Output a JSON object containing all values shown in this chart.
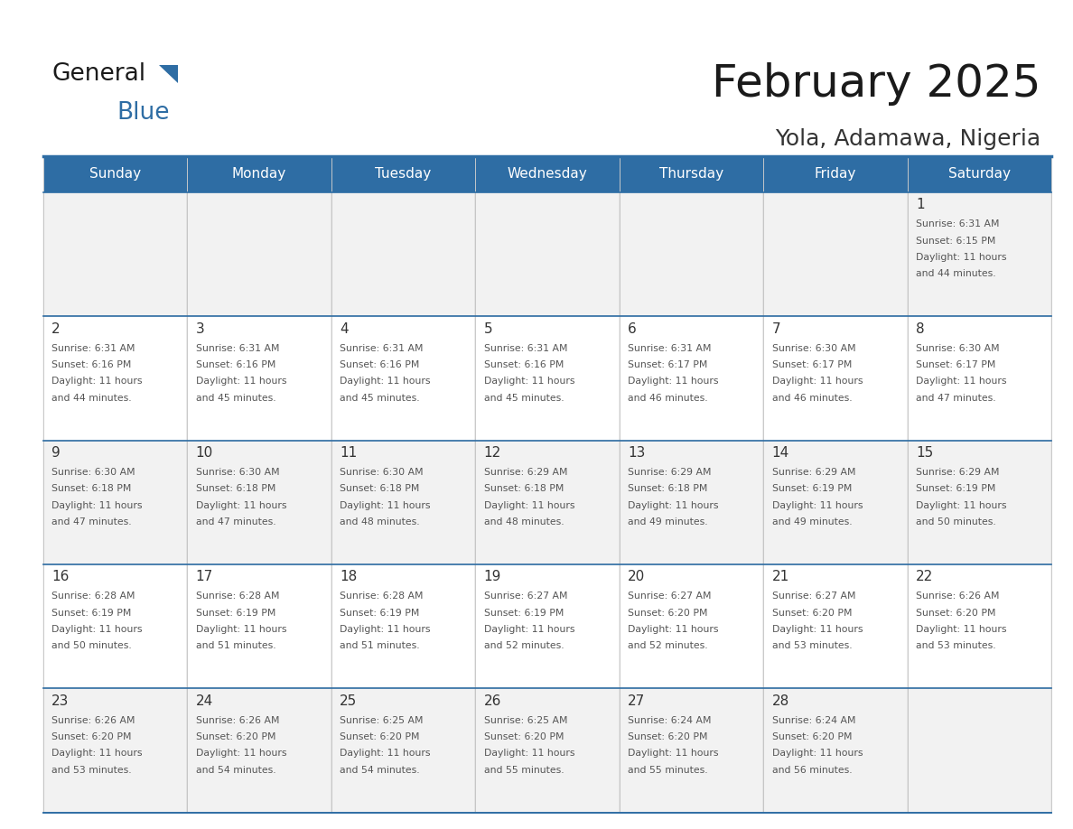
{
  "title": "February 2025",
  "subtitle": "Yola, Adamawa, Nigeria",
  "header_bg": "#2E6DA4",
  "header_text": "#FFFFFF",
  "cell_bg_light": "#F2F2F2",
  "cell_bg_white": "#FFFFFF",
  "border_color": "#2E6DA4",
  "text_color": "#333333",
  "days_of_week": [
    "Sunday",
    "Monday",
    "Tuesday",
    "Wednesday",
    "Thursday",
    "Friday",
    "Saturday"
  ],
  "calendar": [
    [
      {
        "day": null,
        "text": ""
      },
      {
        "day": null,
        "text": ""
      },
      {
        "day": null,
        "text": ""
      },
      {
        "day": null,
        "text": ""
      },
      {
        "day": null,
        "text": ""
      },
      {
        "day": null,
        "text": ""
      },
      {
        "day": 1,
        "text": "Sunrise: 6:31 AM\nSunset: 6:15 PM\nDaylight: 11 hours\nand 44 minutes."
      }
    ],
    [
      {
        "day": 2,
        "text": "Sunrise: 6:31 AM\nSunset: 6:16 PM\nDaylight: 11 hours\nand 44 minutes."
      },
      {
        "day": 3,
        "text": "Sunrise: 6:31 AM\nSunset: 6:16 PM\nDaylight: 11 hours\nand 45 minutes."
      },
      {
        "day": 4,
        "text": "Sunrise: 6:31 AM\nSunset: 6:16 PM\nDaylight: 11 hours\nand 45 minutes."
      },
      {
        "day": 5,
        "text": "Sunrise: 6:31 AM\nSunset: 6:16 PM\nDaylight: 11 hours\nand 45 minutes."
      },
      {
        "day": 6,
        "text": "Sunrise: 6:31 AM\nSunset: 6:17 PM\nDaylight: 11 hours\nand 46 minutes."
      },
      {
        "day": 7,
        "text": "Sunrise: 6:30 AM\nSunset: 6:17 PM\nDaylight: 11 hours\nand 46 minutes."
      },
      {
        "day": 8,
        "text": "Sunrise: 6:30 AM\nSunset: 6:17 PM\nDaylight: 11 hours\nand 47 minutes."
      }
    ],
    [
      {
        "day": 9,
        "text": "Sunrise: 6:30 AM\nSunset: 6:18 PM\nDaylight: 11 hours\nand 47 minutes."
      },
      {
        "day": 10,
        "text": "Sunrise: 6:30 AM\nSunset: 6:18 PM\nDaylight: 11 hours\nand 47 minutes."
      },
      {
        "day": 11,
        "text": "Sunrise: 6:30 AM\nSunset: 6:18 PM\nDaylight: 11 hours\nand 48 minutes."
      },
      {
        "day": 12,
        "text": "Sunrise: 6:29 AM\nSunset: 6:18 PM\nDaylight: 11 hours\nand 48 minutes."
      },
      {
        "day": 13,
        "text": "Sunrise: 6:29 AM\nSunset: 6:18 PM\nDaylight: 11 hours\nand 49 minutes."
      },
      {
        "day": 14,
        "text": "Sunrise: 6:29 AM\nSunset: 6:19 PM\nDaylight: 11 hours\nand 49 minutes."
      },
      {
        "day": 15,
        "text": "Sunrise: 6:29 AM\nSunset: 6:19 PM\nDaylight: 11 hours\nand 50 minutes."
      }
    ],
    [
      {
        "day": 16,
        "text": "Sunrise: 6:28 AM\nSunset: 6:19 PM\nDaylight: 11 hours\nand 50 minutes."
      },
      {
        "day": 17,
        "text": "Sunrise: 6:28 AM\nSunset: 6:19 PM\nDaylight: 11 hours\nand 51 minutes."
      },
      {
        "day": 18,
        "text": "Sunrise: 6:28 AM\nSunset: 6:19 PM\nDaylight: 11 hours\nand 51 minutes."
      },
      {
        "day": 19,
        "text": "Sunrise: 6:27 AM\nSunset: 6:19 PM\nDaylight: 11 hours\nand 52 minutes."
      },
      {
        "day": 20,
        "text": "Sunrise: 6:27 AM\nSunset: 6:20 PM\nDaylight: 11 hours\nand 52 minutes."
      },
      {
        "day": 21,
        "text": "Sunrise: 6:27 AM\nSunset: 6:20 PM\nDaylight: 11 hours\nand 53 minutes."
      },
      {
        "day": 22,
        "text": "Sunrise: 6:26 AM\nSunset: 6:20 PM\nDaylight: 11 hours\nand 53 minutes."
      }
    ],
    [
      {
        "day": 23,
        "text": "Sunrise: 6:26 AM\nSunset: 6:20 PM\nDaylight: 11 hours\nand 53 minutes."
      },
      {
        "day": 24,
        "text": "Sunrise: 6:26 AM\nSunset: 6:20 PM\nDaylight: 11 hours\nand 54 minutes."
      },
      {
        "day": 25,
        "text": "Sunrise: 6:25 AM\nSunset: 6:20 PM\nDaylight: 11 hours\nand 54 minutes."
      },
      {
        "day": 26,
        "text": "Sunrise: 6:25 AM\nSunset: 6:20 PM\nDaylight: 11 hours\nand 55 minutes."
      },
      {
        "day": 27,
        "text": "Sunrise: 6:24 AM\nSunset: 6:20 PM\nDaylight: 11 hours\nand 55 minutes."
      },
      {
        "day": 28,
        "text": "Sunrise: 6:24 AM\nSunset: 6:20 PM\nDaylight: 11 hours\nand 56 minutes."
      },
      {
        "day": null,
        "text": ""
      }
    ]
  ]
}
